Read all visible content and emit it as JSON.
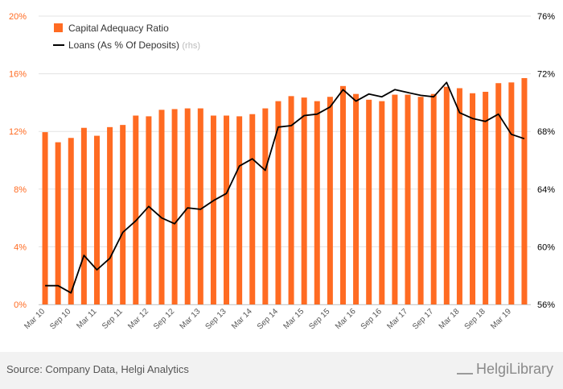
{
  "chart_data": {
    "type": "bar",
    "legend_position": "top-left",
    "grid": true,
    "x_tick_labels": [
      "Mar 10",
      "Sep 10",
      "Mar 11",
      "Sep 11",
      "Mar 12",
      "Sep 12",
      "Mar 13",
      "Sep 13",
      "Mar 14",
      "Sep 14",
      "Mar 15",
      "Sep 15",
      "Mar 16",
      "Sep 16",
      "Mar 17",
      "Sep 17",
      "Mar 18",
      "Sep 18",
      "Mar 19"
    ],
    "categories": [
      "Mar 10",
      "Jun 10",
      "Sep 10",
      "Dec 10",
      "Mar 11",
      "Jun 11",
      "Sep 11",
      "Dec 11",
      "Mar 12",
      "Jun 12",
      "Sep 12",
      "Dec 12",
      "Mar 13",
      "Jun 13",
      "Sep 13",
      "Dec 13",
      "Mar 14",
      "Jun 14",
      "Sep 14",
      "Dec 14",
      "Mar 15",
      "Jun 15",
      "Sep 15",
      "Dec 15",
      "Mar 16",
      "Jun 16",
      "Sep 16",
      "Dec 16",
      "Mar 17",
      "Jun 17",
      "Sep 17",
      "Dec 17",
      "Mar 18",
      "Jun 18",
      "Sep 18",
      "Dec 18",
      "Mar 19",
      "Jun 19"
    ],
    "series": [
      {
        "name": "Capital Adequacy Ratio",
        "type": "bar",
        "axis": "left",
        "color": "#ff6b22",
        "values": [
          11.95,
          11.25,
          11.55,
          12.25,
          11.7,
          12.3,
          12.45,
          13.1,
          13.05,
          13.5,
          13.55,
          13.6,
          13.6,
          13.1,
          13.1,
          13.05,
          13.2,
          13.6,
          14.1,
          14.45,
          14.35,
          14.1,
          14.4,
          15.15,
          14.6,
          14.2,
          14.1,
          14.55,
          14.55,
          14.4,
          14.6,
          15.1,
          15.0,
          14.65,
          14.75,
          15.35,
          15.4,
          15.7
        ]
      },
      {
        "name": "Loans (As % Of Deposits)",
        "label_suffix": "(rhs)",
        "type": "line",
        "axis": "right",
        "color": "#000000",
        "values": [
          57.3,
          57.3,
          56.8,
          59.4,
          58.4,
          59.2,
          61.0,
          61.8,
          62.8,
          62.0,
          61.6,
          62.7,
          62.6,
          63.2,
          63.7,
          65.6,
          66.1,
          65.3,
          68.3,
          68.4,
          69.1,
          69.2,
          69.7,
          70.9,
          70.1,
          70.6,
          70.4,
          70.9,
          70.7,
          70.5,
          70.4,
          71.4,
          69.3,
          68.9,
          68.7,
          69.2,
          67.8,
          67.5
        ]
      }
    ],
    "left_axis": {
      "min": 0,
      "max": 20,
      "ticks": [
        0,
        4,
        8,
        12,
        16,
        20
      ],
      "labels": [
        "0%",
        "4%",
        "8%",
        "12%",
        "16%",
        "20%"
      ],
      "color": "#ff6b22"
    },
    "right_axis": {
      "min": 56,
      "max": 76,
      "ticks": [
        56,
        60,
        64,
        68,
        72,
        76
      ],
      "labels": [
        "56%",
        "60%",
        "64%",
        "68%",
        "72%",
        "76%"
      ],
      "color": "#000000"
    }
  },
  "footer": {
    "source": "Source: Company Data, Helgi Analytics",
    "brand": "HelgiLibrary"
  },
  "colors": {
    "footer_bg": "#f2f2f2",
    "grid": "#e3e3e3",
    "rhs_note": "#bbbbbb"
  }
}
